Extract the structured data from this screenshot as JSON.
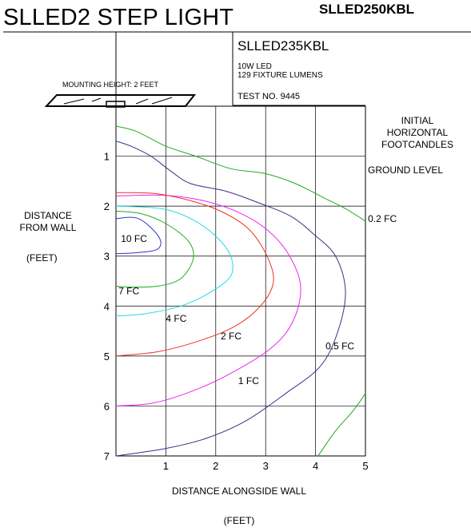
{
  "header": {
    "title": "SLLED2 STEP LIGHT",
    "model": "SLLED250KBL"
  },
  "fixture_info": {
    "catalog": "SLLED235KBL",
    "wattage": "10W LED",
    "lumens": "129 FIXTURE LUMENS",
    "test_no": "TEST NO. 9445",
    "mounting_height": "MOUNTING HEIGHT: 2 FEET"
  },
  "side_labels": {
    "metric_line1": "INITIAL",
    "metric_line2": "HORIZONTAL",
    "metric_line3": "FOOTCANDLES",
    "plane": "GROUND LEVEL"
  },
  "colors": {
    "green": "#22aa22",
    "navy": "#333388",
    "red": "#ee3322",
    "magenta": "#ee22ee",
    "cyan": "#22dddd",
    "blue": "#3333cc"
  },
  "chart_data": {
    "type": "contour",
    "xlabel": "DISTANCE ALONGSIDE WALL",
    "xunit": "(FEET)",
    "ylabel_line1": "DISTANCE",
    "ylabel_line2": "FROM WALL",
    "yunit": "(FEET)",
    "xlim": [
      0,
      5
    ],
    "ylim": [
      0,
      7
    ],
    "y_inverted": true,
    "grid": true,
    "x_ticks": [
      "1",
      "2",
      "3",
      "4",
      "5"
    ],
    "y_ticks": [
      "1",
      "2",
      "3",
      "4",
      "5",
      "6",
      "7"
    ],
    "series": [
      {
        "label": "0.2 FC",
        "color": "green",
        "points": [
          [
            0.0,
            0.4
          ],
          [
            0.4,
            0.5
          ],
          [
            1.0,
            0.8
          ],
          [
            1.6,
            1.0
          ],
          [
            2.3,
            1.25
          ],
          [
            3.0,
            1.35
          ],
          [
            3.6,
            1.55
          ],
          [
            4.2,
            1.85
          ],
          [
            4.6,
            2.05
          ],
          [
            5.0,
            2.3
          ]
        ]
      },
      {
        "label": "0.2 FC",
        "color": "green",
        "points": [
          [
            4.05,
            7.0
          ],
          [
            4.4,
            6.5
          ],
          [
            4.75,
            6.1
          ],
          [
            5.0,
            5.75
          ]
        ]
      },
      {
        "label": "0.5 FC",
        "color": "navy",
        "points": [
          [
            0.0,
            0.7
          ],
          [
            0.3,
            0.8
          ],
          [
            0.7,
            1.0
          ],
          [
            1.1,
            1.3
          ],
          [
            1.5,
            1.55
          ],
          [
            2.2,
            1.7
          ],
          [
            2.9,
            1.95
          ],
          [
            3.5,
            2.2
          ],
          [
            3.95,
            2.55
          ],
          [
            4.4,
            3.0
          ],
          [
            4.6,
            3.7
          ],
          [
            4.45,
            4.5
          ],
          [
            4.1,
            5.2
          ],
          [
            3.4,
            5.75
          ],
          [
            2.6,
            6.3
          ],
          [
            1.8,
            6.65
          ],
          [
            1.0,
            6.85
          ],
          [
            0.0,
            7.0
          ]
        ]
      },
      {
        "label": "1 FC",
        "color": "magenta",
        "points": [
          [
            0.0,
            1.8
          ],
          [
            0.9,
            1.78
          ],
          [
            1.7,
            1.88
          ],
          [
            2.4,
            2.1
          ],
          [
            3.0,
            2.45
          ],
          [
            3.45,
            2.95
          ],
          [
            3.7,
            3.6
          ],
          [
            3.55,
            4.3
          ],
          [
            3.1,
            4.85
          ],
          [
            2.2,
            5.4
          ],
          [
            1.4,
            5.75
          ],
          [
            0.7,
            5.95
          ],
          [
            0.0,
            6.0
          ]
        ]
      },
      {
        "label": "2 FC",
        "color": "red",
        "points": [
          [
            0.0,
            1.73
          ],
          [
            0.8,
            1.75
          ],
          [
            1.6,
            1.92
          ],
          [
            2.2,
            2.15
          ],
          [
            2.7,
            2.5
          ],
          [
            3.05,
            3.05
          ],
          [
            3.15,
            3.55
          ],
          [
            2.85,
            4.05
          ],
          [
            2.3,
            4.45
          ],
          [
            1.5,
            4.75
          ],
          [
            0.8,
            4.92
          ],
          [
            0.0,
            5.0
          ]
        ]
      },
      {
        "label": "4 FC",
        "color": "cyan",
        "points": [
          [
            0.0,
            2.0
          ],
          [
            0.9,
            2.05
          ],
          [
            1.5,
            2.25
          ],
          [
            2.0,
            2.6
          ],
          [
            2.3,
            3.0
          ],
          [
            2.3,
            3.4
          ],
          [
            1.85,
            3.75
          ],
          [
            1.3,
            4.0
          ],
          [
            0.6,
            4.15
          ],
          [
            0.0,
            4.2
          ]
        ]
      },
      {
        "label": "7 FC",
        "color": "green",
        "points": [
          [
            0.0,
            2.1
          ],
          [
            0.5,
            2.15
          ],
          [
            1.0,
            2.35
          ],
          [
            1.45,
            2.7
          ],
          [
            1.55,
            3.05
          ],
          [
            1.3,
            3.45
          ],
          [
            0.85,
            3.6
          ],
          [
            0.3,
            3.62
          ],
          [
            0.0,
            3.6
          ]
        ]
      },
      {
        "label": "10 FC",
        "color": "blue",
        "points": [
          [
            0.0,
            2.25
          ],
          [
            0.45,
            2.25
          ],
          [
            0.85,
            2.6
          ],
          [
            0.85,
            2.85
          ],
          [
            0.45,
            2.93
          ],
          [
            0.0,
            2.95
          ]
        ]
      }
    ],
    "annotations": [
      {
        "text": "0.2 FC",
        "x": 5.05,
        "y": 2.25
      },
      {
        "text": "0.5 FC",
        "x": 4.2,
        "y": 4.8
      },
      {
        "text": "1 FC",
        "x": 2.45,
        "y": 5.5
      },
      {
        "text": "2 FC",
        "x": 2.1,
        "y": 4.6
      },
      {
        "text": "4 FC",
        "x": 1.0,
        "y": 4.25
      },
      {
        "text": "7 FC",
        "x": 0.05,
        "y": 3.7
      },
      {
        "text": "10 FC",
        "x": 0.1,
        "y": 2.65
      }
    ]
  }
}
